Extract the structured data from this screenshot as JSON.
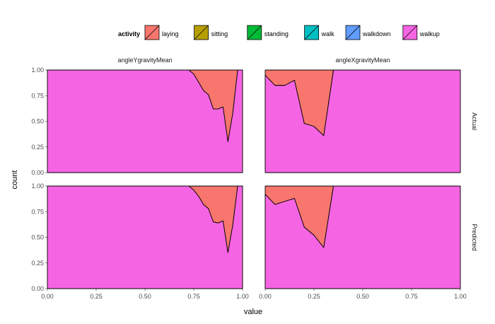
{
  "chart_data": {
    "type": "area",
    "subtype": "stacked-fill-density",
    "xlabel": "value",
    "ylabel": "count",
    "x_ticks": [
      "0.00",
      "0.25",
      "0.50",
      "0.75",
      "1.00"
    ],
    "y_ticks": [
      "0.00",
      "0.25",
      "0.50",
      "0.75",
      "1.00"
    ],
    "xlim": [
      0,
      1
    ],
    "ylim": [
      0,
      1
    ],
    "grid": true,
    "legend": {
      "title": "activity",
      "position": "top",
      "entries": [
        {
          "name": "laying",
          "color": "#F8766D"
        },
        {
          "name": "sitting",
          "color": "#B79F00"
        },
        {
          "name": "standing",
          "color": "#00BA38"
        },
        {
          "name": "walk",
          "color": "#00BFC4"
        },
        {
          "name": "walkdown",
          "color": "#619CFF"
        },
        {
          "name": "walkup",
          "color": "#F564E3"
        }
      ]
    },
    "facet_columns": [
      "angleYgravityMean",
      "angleXgravityMean"
    ],
    "facet_rows": [
      "Actual",
      "Predicted"
    ],
    "x": [
      0.0,
      0.05,
      0.1,
      0.15,
      0.2,
      0.25,
      0.3,
      0.35,
      0.4,
      0.45,
      0.5,
      0.55,
      0.6,
      0.625,
      0.65,
      0.675,
      0.7,
      0.725,
      0.75,
      0.775,
      0.8,
      0.825,
      0.85,
      0.875,
      0.9,
      0.925,
      0.95,
      0.975,
      1.0
    ],
    "panels": [
      {
        "column": "angleYgravityMean",
        "row": "Actual",
        "cumulative": [
          [
            1,
            1,
            1,
            1,
            1,
            1,
            0.92,
            0.4,
            0.1,
            0.03,
            0.01,
            0,
            0,
            0,
            0,
            0,
            0,
            0.01,
            0.02,
            0.02,
            0.03,
            0.02,
            0.02,
            0.02,
            0.02,
            0.02,
            0.0,
            0,
            0
          ],
          [
            1,
            1,
            1,
            1,
            1,
            1,
            1,
            1,
            1,
            1,
            1,
            1,
            0.99,
            0.95,
            0.82,
            0.6,
            0.4,
            0.15,
            0.12,
            0.18,
            0.1,
            0.12,
            0.08,
            0.15,
            0.35,
            0.06,
            0.1,
            1,
            1
          ],
          [
            1,
            1,
            1,
            1,
            1,
            1,
            1,
            1,
            1,
            1,
            1,
            1,
            1,
            1,
            0.96,
            0.9,
            0.82,
            0.45,
            0.38,
            0.45,
            0.33,
            0.42,
            0.25,
            0.52,
            0.6,
            0.12,
            0.45,
            1,
            1
          ],
          [
            1,
            1,
            1,
            1,
            1,
            1,
            1,
            1,
            1,
            1,
            1,
            1,
            1,
            1,
            1,
            1,
            0.98,
            0.92,
            0.78,
            0.55,
            0.52,
            0.6,
            0.42,
            0.58,
            0.62,
            0.2,
            0.55,
            1,
            1
          ],
          [
            1,
            1,
            1,
            1,
            1,
            1,
            1,
            1,
            1,
            1,
            1,
            1,
            1,
            1,
            1,
            1,
            1,
            1,
            0.96,
            0.88,
            0.8,
            0.76,
            0.62,
            0.62,
            0.64,
            0.3,
            0.58,
            1,
            1
          ]
        ]
      },
      {
        "column": "angleXgravityMean",
        "row": "Actual",
        "cumulative": [
          [
            0.04,
            0.04,
            0.04,
            0.04,
            0.04,
            0.04,
            0.04,
            0.04,
            0.04,
            0.04,
            0.04,
            0.04,
            0.04,
            1,
            1,
            1,
            1,
            1,
            1,
            1,
            1,
            1,
            1,
            1,
            1,
            1,
            1,
            1,
            1
          ],
          [
            0.65,
            0.58,
            0.5,
            0.45,
            0.3,
            0.36,
            0.3,
            1,
            1,
            1,
            1,
            1,
            1,
            1,
            1,
            1,
            1,
            1,
            1,
            1,
            1,
            1,
            1,
            1,
            1,
            1,
            1,
            1,
            1
          ],
          [
            0.75,
            0.62,
            0.7,
            0.6,
            0.45,
            0.4,
            0.32,
            1,
            1,
            1,
            1,
            1,
            1,
            1,
            1,
            1,
            1,
            1,
            1,
            1,
            1,
            1,
            1,
            1,
            1,
            1,
            1,
            1,
            1
          ],
          [
            0.8,
            0.78,
            0.75,
            0.8,
            0.45,
            0.42,
            0.35,
            1,
            1,
            1,
            1,
            1,
            1,
            1,
            1,
            1,
            1,
            1,
            1,
            1,
            1,
            1,
            1,
            1,
            1,
            1,
            1,
            1,
            1
          ],
          [
            0.95,
            0.85,
            0.85,
            0.9,
            0.48,
            0.45,
            0.36,
            1,
            1,
            1,
            1,
            1,
            1,
            1,
            1,
            1,
            1,
            1,
            1,
            1,
            1,
            1,
            1,
            1,
            1,
            1,
            1,
            1,
            1
          ]
        ]
      },
      {
        "column": "angleYgravityMean",
        "row": "Predicted",
        "cumulative": [
          [
            1,
            1,
            1,
            1,
            1,
            1,
            0.92,
            0.4,
            0.1,
            0.03,
            0.01,
            0,
            0,
            0,
            0,
            0,
            0,
            0.01,
            0.01,
            0.01,
            0.02,
            0.01,
            0.02,
            0.02,
            0.01,
            0.01,
            0.0,
            0,
            0
          ],
          [
            1,
            1,
            1,
            1,
            1,
            1,
            1,
            1,
            1,
            1,
            1,
            1,
            0.99,
            0.95,
            0.82,
            0.6,
            0.42,
            0.2,
            0.16,
            0.22,
            0.12,
            0.18,
            0.1,
            0.2,
            0.36,
            0.08,
            0.12,
            1,
            1
          ],
          [
            1,
            1,
            1,
            1,
            1,
            1,
            1,
            1,
            1,
            1,
            1,
            1,
            1,
            1,
            0.96,
            0.9,
            0.82,
            0.5,
            0.42,
            0.5,
            0.38,
            0.48,
            0.3,
            0.55,
            0.62,
            0.15,
            0.48,
            1,
            1
          ],
          [
            1,
            1,
            1,
            1,
            1,
            1,
            1,
            1,
            1,
            1,
            1,
            1,
            1,
            1,
            1,
            1,
            0.98,
            0.92,
            0.8,
            0.6,
            0.55,
            0.62,
            0.48,
            0.6,
            0.65,
            0.25,
            0.6,
            1,
            1
          ],
          [
            1,
            1,
            1,
            1,
            1,
            1,
            1,
            1,
            1,
            1,
            1,
            1,
            1,
            1,
            1,
            1,
            1,
            1,
            0.96,
            0.9,
            0.82,
            0.78,
            0.65,
            0.64,
            0.66,
            0.35,
            0.62,
            1,
            1
          ]
        ]
      },
      {
        "column": "angleXgravityMean",
        "row": "Predicted",
        "cumulative": [
          [
            0.02,
            0.02,
            0.02,
            0.02,
            0.02,
            0.02,
            0.02,
            0.02,
            0.02,
            0.02,
            0.02,
            0.02,
            0.02,
            1,
            1,
            1,
            1,
            1,
            1,
            1,
            1,
            1,
            1,
            1,
            1,
            1,
            1,
            1,
            1
          ],
          [
            0.3,
            0.45,
            0.35,
            0.4,
            0.38,
            0.42,
            0.33,
            1,
            1,
            1,
            1,
            1,
            1,
            1,
            1,
            1,
            1,
            1,
            1,
            1,
            1,
            1,
            1,
            1,
            1,
            1,
            1,
            1,
            1
          ],
          [
            0.65,
            0.55,
            0.62,
            0.58,
            0.5,
            0.45,
            0.35,
            1,
            1,
            1,
            1,
            1,
            1,
            1,
            1,
            1,
            1,
            1,
            1,
            1,
            1,
            1,
            1,
            1,
            1,
            1,
            1,
            1,
            1
          ],
          [
            0.8,
            0.75,
            0.72,
            0.78,
            0.55,
            0.5,
            0.38,
            1,
            1,
            1,
            1,
            1,
            1,
            1,
            1,
            1,
            1,
            1,
            1,
            1,
            1,
            1,
            1,
            1,
            1,
            1,
            1,
            1,
            1
          ],
          [
            0.92,
            0.82,
            0.85,
            0.88,
            0.6,
            0.52,
            0.4,
            1,
            1,
            1,
            1,
            1,
            1,
            1,
            1,
            1,
            1,
            1,
            1,
            1,
            1,
            1,
            1,
            1,
            1,
            1,
            1,
            1,
            1
          ]
        ]
      }
    ]
  }
}
